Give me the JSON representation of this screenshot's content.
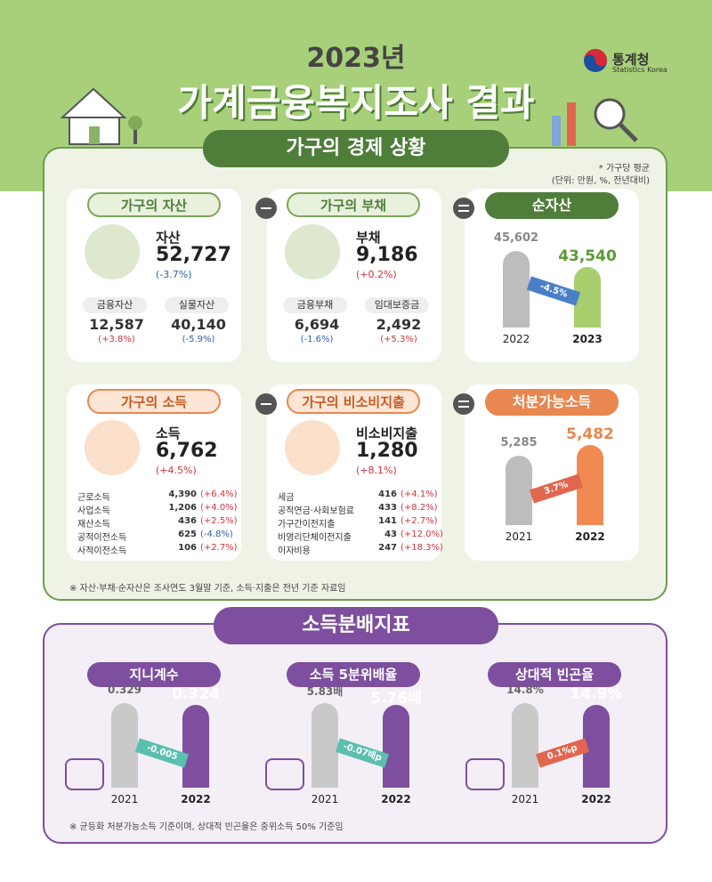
{
  "header": {
    "year_title": "2023년",
    "title": "가계금융복지조사 결과",
    "logo_name": "통계청",
    "logo_sub": "Statistics Korea"
  },
  "economy": {
    "section_title": "가구의 경제 상황",
    "unit_note_1": "* 가구당 평균",
    "unit_note_2": "(단위: 만원, %, 전년대비)",
    "assets": {
      "tab": "가구의 자산",
      "label": "자산",
      "value": "52,727",
      "change": "(-3.7%)",
      "items": [
        {
          "name": "금융자산",
          "value": "12,587",
          "change": "(+3.8%)"
        },
        {
          "name": "실물자산",
          "value": "40,140",
          "change": "(-5.9%)"
        }
      ]
    },
    "debt": {
      "tab": "가구의 부채",
      "label": "부채",
      "value": "9,186",
      "change": "(+0.2%)",
      "items": [
        {
          "name": "금융부채",
          "value": "6,694",
          "change": "(-1.6%)"
        },
        {
          "name": "임대보증금",
          "value": "2,492",
          "change": "(+5.3%)"
        }
      ]
    },
    "net_assets": {
      "tab": "순자산",
      "change": "-4.5%",
      "bars": [
        {
          "year": "2022",
          "value": "45,602"
        },
        {
          "year": "2023",
          "value": "43,540"
        }
      ]
    },
    "income": {
      "tab": "가구의 소득",
      "label": "소득",
      "value": "6,762",
      "change": "(+4.5%)",
      "items": [
        {
          "name": "근로소득",
          "value": "4,390",
          "change": "(+6.4%)"
        },
        {
          "name": "사업소득",
          "value": "1,206",
          "change": "(+4.0%)"
        },
        {
          "name": "재산소득",
          "value": "436",
          "change": "(+2.5%)"
        },
        {
          "name": "공적이전소득",
          "value": "625",
          "change": "(-4.8%)"
        },
        {
          "name": "사적이전소득",
          "value": "106",
          "change": "(+2.7%)"
        }
      ]
    },
    "nonconsumption": {
      "tab": "가구의 비소비지출",
      "label": "비소비지출",
      "value": "1,280",
      "change": "(+8.1%)",
      "items": [
        {
          "name": "세금",
          "value": "416",
          "change": "(+4.1%)"
        },
        {
          "name": "공적연금·사회보험료",
          "value": "433",
          "change": "(+8.2%)"
        },
        {
          "name": "가구간이전지출",
          "value": "141",
          "change": "(+2.7%)"
        },
        {
          "name": "비영리단체이전지출",
          "value": "43",
          "change": "(+12.0%)"
        },
        {
          "name": "이자비용",
          "value": "247",
          "change": "(+18.3%)"
        }
      ]
    },
    "disposable": {
      "tab": "처분가능소득",
      "change": "3.7%",
      "bars": [
        {
          "year": "2021",
          "value": "5,285"
        },
        {
          "year": "2022",
          "value": "5,482"
        }
      ]
    },
    "footnote": "※ 자산·부채·순자산은 조사연도 3월말 기준, 소득·지출은 전년 기준 자료임"
  },
  "distribution": {
    "section_title": "소득분배지표",
    "panels": [
      {
        "tab": "지니계수",
        "change": "-0.005",
        "bars": [
          {
            "year": "2021",
            "value": "0.329"
          },
          {
            "year": "2022",
            "value": "0.324"
          }
        ]
      },
      {
        "tab": "소득 5분위배율",
        "change": "-0.07배p",
        "bars": [
          {
            "year": "2021",
            "value": "5.83배"
          },
          {
            "year": "2022",
            "value": "5.76배"
          }
        ]
      },
      {
        "tab": "상대적 빈곤율",
        "change": "0.1%p",
        "bars": [
          {
            "year": "2021",
            "value": "14.8%"
          },
          {
            "year": "2022",
            "value": "14.9%"
          }
        ]
      }
    ],
    "footnote": "※ 균등화 처분가능소득 기준이며, 상대적 빈곤율은 중위소득 50% 기준임"
  }
}
